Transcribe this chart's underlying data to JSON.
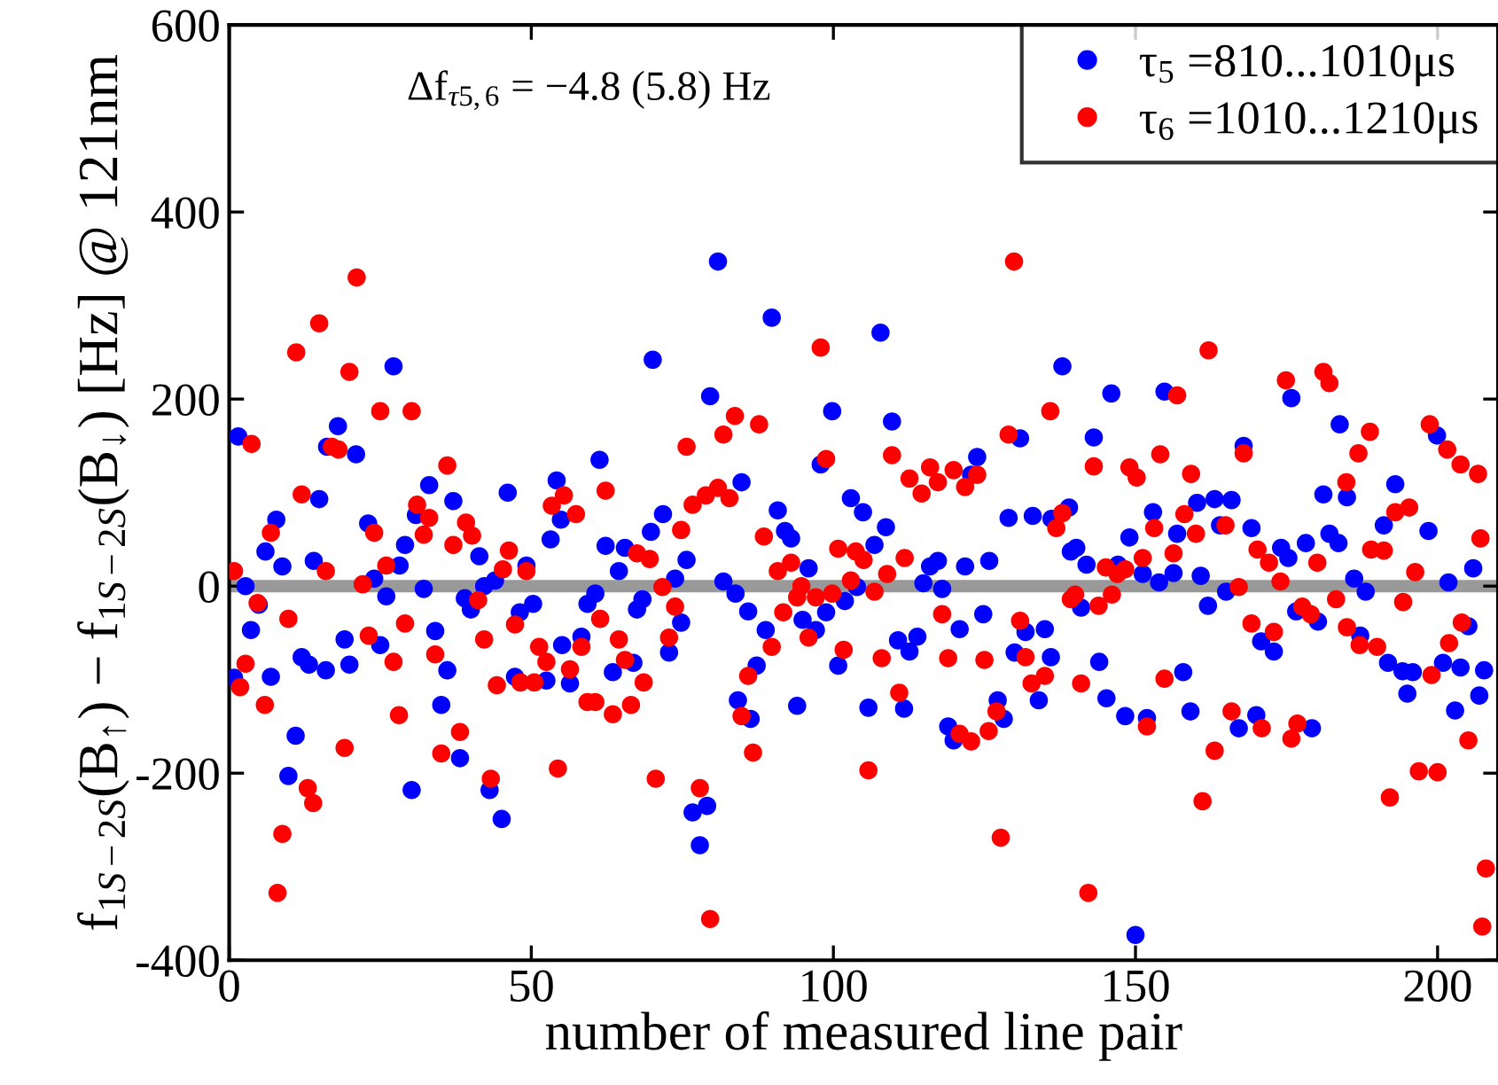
{
  "chart_data": {
    "type": "scatter",
    "xlabel": "number of measured line pair",
    "ylabel": "f$_{1S−2S}$(B$_{↑}$) − f$_{1S−2S}$(B$_{↓}$) [Hz] @ 121nm",
    "xlim": [
      0,
      210
    ],
    "ylim": [
      -400,
      600
    ],
    "xticks": [
      0,
      50,
      100,
      150,
      200
    ],
    "yticks": [
      -400,
      -200,
      0,
      200,
      400,
      600
    ],
    "grid": false,
    "legend": "top right",
    "marker": "circle",
    "annotations": [
      "Δf$_{τ5,6}$ = −4.8 (5.8) Hz"
    ],
    "ref_lines": [
      {
        "axis": "y",
        "value": 0,
        "color": "#999999"
      }
    ],
    "series": [
      {
        "name": "τ$_{5}$ =810...1010μs",
        "color": "#0000ff",
        "x": [
          1.5,
          2.7,
          4.9,
          3.6,
          0.8,
          6,
          8.8,
          7.8,
          6.9,
          11,
          9.8,
          12,
          13.2,
          14,
          14.9,
          16,
          18,
          16.2,
          21,
          19.1,
          19.9,
          23,
          24,
          25,
          26,
          27.2,
          28.2,
          29.1,
          30.9,
          32.2,
          33.1,
          34.1,
          35.1,
          36.1,
          37.1,
          38.2,
          30.2,
          39,
          40,
          41.4,
          42.2,
          43.1,
          45.1,
          44,
          46.1,
          48.1,
          49.2,
          50.3,
          47.3,
          52.5,
          53.2,
          54.2,
          54.9,
          55.1,
          56.4,
          58.3,
          59.3,
          60.6,
          61.3,
          62.3,
          63.5,
          64.5,
          65.5,
          66.9,
          67.5,
          68.4,
          69.8,
          70.1,
          80.9,
          89.8,
          79.6,
          99.8,
          107.8,
          109.7,
          97.9,
          84.8,
          102.9,
          104.9,
          90.8,
          92,
          93,
          71.8,
          75.7,
          73.8,
          81.8,
          83.8,
          85.9,
          88.8,
          95.9,
          94.9,
          97.1,
          98.8,
          100.8,
          101.9,
          103.9,
          106.8,
          108.7,
          105.8,
          94,
          87.3,
          86.3,
          84.2,
          74.8,
          72.8,
          76.7,
          79.1,
          77.9,
          110.7,
          112.6,
          113.9,
          111.7,
          114.9,
          116,
          117.3,
          118,
          119,
          119.9,
          120.9,
          121.8,
          123.8,
          122.8,
          124.8,
          125.8,
          127.2,
          128.2,
          129,
          130.9,
          133,
          130,
          131.8,
          135,
          136,
          134,
          136.1,
          137.9,
          139,
          139.3,
          143.1,
          146,
          154.8,
          175.8,
          183.8,
          167.9,
          140.2,
          141.9,
          147.1,
          149,
          151.2,
          152.9,
          153.9,
          156.3,
          156.9,
          160.2,
          163.1,
          165.9,
          164,
          165,
          160.8,
          162,
          169.2,
          174.1,
          175.3,
          178.2,
          181.1,
          182.1,
          183.6,
          185,
          186.2,
          188.1,
          193,
          191.1,
          198.5,
          199.9,
          201.8,
          205.9,
          141,
          144,
          145.2,
          148.3,
          151.9,
          157.9,
          159.1,
          167.1,
          170,
          170.8,
          172.9,
          176.6,
          179.2,
          180.2,
          187.2,
          191.8,
          194.2,
          195.9,
          195,
          200.9,
          203.8,
          202.9,
          205.1,
          206.9,
          207.7,
          150
        ],
        "values": [
          160,
          0,
          -20,
          -47,
          -98,
          37,
          21,
          71,
          -97,
          -160,
          -203,
          -76,
          -84,
          27,
          93,
          -90,
          171,
          149,
          141,
          -57,
          -84,
          67,
          8,
          -63,
          -11,
          235,
          22,
          44,
          76,
          -3,
          108,
          -48,
          -127,
          -90,
          91,
          -184,
          -218,
          -13,
          -25,
          32,
          0,
          -218,
          -249,
          6,
          100,
          -28,
          22,
          -19,
          -97,
          -101,
          50,
          113,
          71,
          -63,
          -104,
          -54,
          -19,
          -8,
          135,
          43,
          -92,
          16,
          41,
          -82,
          -25,
          -14,
          58,
          242,
          347,
          287,
          203,
          187,
          271,
          176,
          130,
          111,
          94,
          79,
          81,
          59,
          51,
          77,
          28,
          8,
          5,
          -8,
          -27,
          -47,
          19,
          -36,
          -47,
          -28,
          -85,
          -16,
          -1,
          44,
          63,
          -130,
          -128,
          -85,
          -142,
          -122,
          -39,
          -71,
          -242,
          -235,
          -277,
          -58,
          -70,
          -54,
          -131,
          3,
          21,
          27,
          -3,
          -150,
          -165,
          -46,
          21,
          138,
          119,
          -30,
          27,
          -122,
          -142,
          73,
          158,
          75,
          -71,
          -49,
          -46,
          -76,
          -122,
          72,
          235,
          84,
          37,
          159,
          206,
          208,
          201,
          173,
          150,
          41,
          23,
          23,
          52,
          13,
          79,
          4,
          14,
          56,
          89,
          93,
          92,
          65,
          -6,
          11,
          -21,
          62,
          41,
          30,
          46,
          98,
          56,
          46,
          95,
          8,
          -6,
          109,
          65,
          59,
          161,
          4,
          19,
          -23,
          -81,
          -120,
          -139,
          -141,
          -92,
          -134,
          -152,
          -138,
          -59,
          -70,
          -27,
          -152,
          -38,
          -53,
          -82,
          -91,
          -92,
          -115,
          -82,
          -87,
          -133,
          -43,
          -117,
          -90,
          -373
        ]
      },
      {
        "name": "τ$_{6}$ =1010...1210μs",
        "color": "#ff0000",
        "x": [
          0.8,
          1.8,
          2.7,
          3.7,
          4.7,
          5.9,
          6.9,
          8,
          8.8,
          9.8,
          11.1,
          12,
          13,
          13.9,
          14.9,
          16,
          17,
          18.1,
          19.1,
          19.9,
          21.1,
          22.1,
          23.1,
          24,
          25,
          26,
          27.2,
          28.1,
          29.1,
          30.2,
          31.1,
          32.2,
          33.1,
          34.1,
          35.1,
          36.1,
          37.1,
          38.2,
          39.2,
          40.2,
          41.2,
          42.2,
          43.3,
          44.3,
          45.3,
          46.3,
          47.3,
          48.2,
          49.2,
          50.5,
          51.3,
          52.5,
          53.4,
          54.4,
          55.4,
          56.4,
          57.4,
          58.3,
          59.3,
          60.6,
          61.4,
          62.3,
          63.5,
          64.5,
          65.5,
          66.5,
          67.5,
          68.6,
          69.6,
          70.6,
          129.9,
          97.9,
          135.9,
          83.7,
          87.7,
          81.8,
          75.7,
          129,
          109.7,
          98.8,
          80.9,
          78.9,
          76.7,
          82.8,
          74.8,
          112.6,
          114.6,
          116,
          117.3,
          119.9,
          121.8,
          123.8,
          88.5,
          90.8,
          93,
          100.8,
          103.7,
          105,
          108.9,
          111.8,
          106.8,
          102.9,
          99.8,
          97.1,
          94.7,
          94,
          91.7,
          95.9,
          89.8,
          71.7,
          73.8,
          72.8,
          85.9,
          84.8,
          86.7,
          101.7,
          108,
          110.9,
          118,
          119,
          120.9,
          122.8,
          125.7,
          127,
          125,
          130.9,
          131.8,
          132.8,
          135,
          77.9,
          79.6,
          105.8,
          127.7,
          137.9,
          136.9,
          139.3,
          162.1,
          174.9,
          181.1,
          182.1,
          156.9,
          188.8,
          186.9,
          184.9,
          198.7,
          201.6,
          203.8,
          206.7,
          167.9,
          154.1,
          143.1,
          149,
          150.2,
          159.2,
          158.1,
          160,
          153.1,
          164.9,
          156.3,
          151.2,
          148.3,
          145.1,
          147,
          170.2,
          172.1,
          174,
          180.1,
          167.1,
          140,
          143.9,
          146.1,
          169.2,
          172.9,
          177.6,
          179,
          183.2,
          185,
          187.1,
          190,
          189,
          191.1,
          193,
          195.3,
          196.3,
          194.3,
          199,
          201.9,
          204,
          207.1,
          141,
          154.8,
          151.9,
          165.9,
          170.9,
          175.8,
          176.8,
          163.1,
          161.1,
          142.2,
          192.1,
          196.9,
          200,
          205.1,
          208,
          207.4
        ],
        "values": [
          16,
          -108,
          -83,
          152,
          -18,
          -127,
          57,
          -328,
          -265,
          -35,
          250,
          98,
          -216,
          -232,
          281,
          16,
          149,
          146,
          -173,
          229,
          330,
          2,
          -53,
          57,
          187,
          22,
          -81,
          -138,
          -40,
          187,
          87,
          55,
          73,
          -73,
          -179,
          129,
          44,
          -156,
          68,
          54,
          -15,
          -57,
          -206,
          -106,
          18,
          38,
          -41,
          -103,
          16,
          -103,
          -65,
          -81,
          86,
          -195,
          97,
          -89,
          77,
          -65,
          -124,
          -124,
          -35,
          102,
          -137,
          -57,
          -79,
          -127,
          35,
          -103,
          29,
          -206,
          347,
          255,
          187,
          182,
          173,
          162,
          149,
          162,
          140,
          136,
          105,
          97,
          87,
          94,
          60,
          115,
          99,
          127,
          111,
          124,
          106,
          119,
          53,
          16,
          25,
          40,
          37,
          28,
          13,
          30,
          -6,
          6,
          -8,
          -12,
          0,
          -12,
          -28,
          -55,
          -65,
          -1,
          -22,
          -55,
          -96,
          -139,
          -178,
          -68,
          -77,
          -114,
          -30,
          -77,
          -158,
          -166,
          -155,
          -134,
          -79,
          -37,
          -76,
          -104,
          -96,
          -216,
          -356,
          -197,
          -269,
          78,
          62,
          -14,
          252,
          220,
          229,
          217,
          204,
          165,
          142,
          111,
          173,
          146,
          130,
          120,
          142,
          141,
          128,
          127,
          116,
          120,
          77,
          56,
          62,
          65,
          35,
          30,
          18,
          20,
          13,
          39,
          25,
          5,
          25,
          -1,
          -9,
          -21,
          -9,
          -40,
          -49,
          -22,
          -30,
          -14,
          -44,
          -63,
          -65,
          39,
          38,
          79,
          84,
          15,
          -17,
          -95,
          -61,
          -39,
          51,
          -104,
          -99,
          -150,
          -134,
          -152,
          -163,
          -147,
          -176,
          -230,
          -328,
          -226,
          -198,
          -199,
          -165,
          -302,
          -364
        ]
      }
    ]
  }
}
